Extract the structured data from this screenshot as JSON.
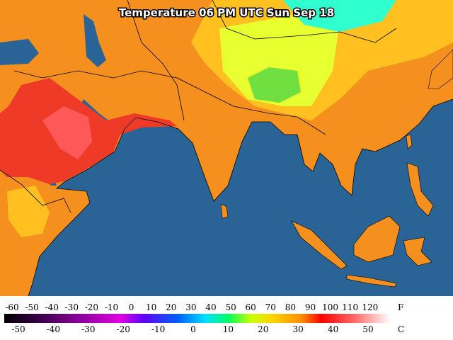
{
  "title": "Temperature 06 PM UTC Sun Sep 18",
  "legend": {
    "fahrenheit": {
      "unit": "F",
      "labels": [
        -60,
        -50,
        -40,
        -30,
        -20,
        -10,
        0,
        10,
        20,
        30,
        40,
        50,
        60,
        70,
        80,
        90,
        100,
        110,
        120
      ]
    },
    "celsius": {
      "unit": "C",
      "labels": [
        -50,
        -40,
        -30,
        -20,
        -10,
        0,
        10,
        20,
        30,
        40,
        50
      ]
    }
  }
}
